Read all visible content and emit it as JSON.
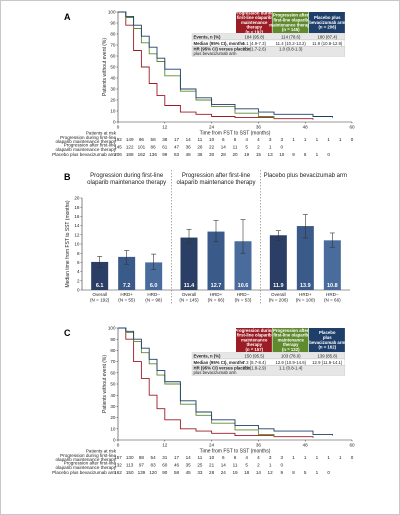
{
  "colors": {
    "c1": "#9b1c24",
    "c2": "#5f8a2e",
    "c3": "#1f3f6b",
    "gray_row": "#e6e6e6",
    "bar1": "#2b3f66",
    "bar2": "#3a5a8a",
    "bar3": "#4a6c9c"
  },
  "panels": [
    {
      "letter": "A",
      "ylabel": "Patients without event (%)",
      "xlabel": "Time from FST to SST (months)",
      "yticks": [
        "0",
        "10",
        "20",
        "30",
        "40",
        "50",
        "60",
        "70",
        "80",
        "90",
        "100"
      ],
      "xticks": [
        "0",
        "12",
        "24",
        "36",
        "48",
        "60"
      ],
      "headers": [
        [
          "Progression during",
          "first-line olaparib",
          "maintenance",
          "therapy",
          "(n = 192)"
        ],
        [
          "Progression after",
          "first-line olaparib",
          "maintenance therapy",
          "(n = 145)"
        ],
        [
          "Placebo plus",
          "bevacizumab arm",
          "(n = 206)"
        ]
      ],
      "table_rows": [
        {
          "label": "Events, n (%)",
          "vals": [
            "184 (95.8)",
            "114 (78.6)",
            "180 (87.4)"
          ]
        },
        {
          "label": "Median (95% CI), months",
          "vals": [
            "6.1 (4.9-7.3)",
            "11.4 (10.2-13.2)",
            "11.9 (10.8-12.9)"
          ]
        },
        {
          "label": "HR (95% CI) versus placebo plus bevacizumab arm",
          "vals": [
            "2.1 (1.7-2.6)",
            "1.0 (0.8-1.3)",
            ""
          ]
        }
      ],
      "risk_title": "Patients at risk",
      "risk_rows": [
        {
          "label": [
            "Progression during first-line",
            "olaparib maintenance therapy"
          ],
          "vals": [
            "192",
            "149",
            "96",
            "58",
            "38",
            "17",
            "14",
            "11",
            "10",
            "6",
            "6",
            "4",
            "4",
            "3",
            "3",
            "1",
            "1",
            "1",
            "1",
            "1",
            "0"
          ]
        },
        {
          "label": [
            "Progression after first-line",
            "olaparib maintenance therapy"
          ],
          "vals": [
            "145",
            "122",
            "101",
            "86",
            "61",
            "47",
            "36",
            "26",
            "22",
            "14",
            "11",
            "5",
            "2",
            "1",
            "0"
          ]
        },
        {
          "label": [
            "Placebo plus bevacizumab arm"
          ],
          "vals": [
            "206",
            "188",
            "162",
            "136",
            "99",
            "63",
            "48",
            "36",
            "30",
            "28",
            "20",
            "19",
            "15",
            "13",
            "10",
            "9",
            "6",
            "1",
            "0"
          ]
        }
      ]
    },
    {
      "letter": "C",
      "ylabel": "Patients without event (%)",
      "xlabel": "Time from FST to SST (months)",
      "yticks": [
        "0",
        "10",
        "20",
        "30",
        "40",
        "50",
        "60",
        "70",
        "80",
        "90",
        "100"
      ],
      "xticks": [
        "0",
        "12",
        "24",
        "36",
        "48",
        "60"
      ],
      "headers": [
        [
          "Progression during",
          "first-line olaparib",
          "maintenance",
          "therapy",
          "(n = 157)"
        ],
        [
          "Progression after",
          "first-line olaparib",
          "maintenance",
          "therapy",
          "(n = 132)"
        ],
        [
          "Placebo",
          "plus",
          "bevacizumab arm",
          "(n = 162)"
        ]
      ],
      "table_rows": [
        {
          "label": "Events, n (%)",
          "vals": [
            "150 (95.5)",
            "103 (78.0)",
            "139 (85.8)"
          ]
        },
        {
          "label": "Median (95% CI), months",
          "vals": [
            "7.3 (5.7-8.4)",
            "12.9 (10.9-14.6)",
            "12.9 (11.9-14.1)"
          ]
        },
        {
          "label": "HR (95% CI) versus placebo plus bevacizumab arm",
          "vals": [
            "2.3 (1.8-2.9)",
            "1.1 (0.8-1.4)",
            ""
          ]
        }
      ],
      "risk_title": "Patients at risk",
      "risk_rows": [
        {
          "label": [
            "Progression during first-line",
            "olaparib maintenance therapy"
          ],
          "vals": [
            "157",
            "130",
            "88",
            "54",
            "31",
            "17",
            "14",
            "11",
            "10",
            "6",
            "6",
            "4",
            "4",
            "3",
            "3",
            "1",
            "1",
            "1",
            "1",
            "1",
            "0"
          ]
        },
        {
          "label": [
            "Progression after first-line",
            "olaparib maintenance therapy"
          ],
          "vals": [
            "132",
            "113",
            "97",
            "83",
            "60",
            "46",
            "35",
            "25",
            "21",
            "14",
            "11",
            "5",
            "2",
            "1",
            "0"
          ]
        },
        {
          "label": [
            "Placebo plus bevacizumab arm"
          ],
          "vals": [
            "162",
            "150",
            "139",
            "120",
            "90",
            "58",
            "45",
            "33",
            "28",
            "24",
            "19",
            "18",
            "14",
            "12",
            "9",
            "8",
            "5",
            "1",
            "0"
          ]
        }
      ]
    }
  ],
  "panel_b": {
    "letter": "B",
    "ylabel": "Median time from FST to SST (months)",
    "yticks": [
      "0",
      "2",
      "4",
      "6",
      "8",
      "10",
      "12",
      "14",
      "16",
      "18",
      "20"
    ],
    "groups": [
      {
        "title": [
          "Progression during first-line",
          "olaparib maintenance therapy"
        ]
      },
      {
        "title": [
          "Progression after first-line",
          "olaparib maintenance therapy"
        ]
      },
      {
        "title": [
          "Placebo plus bevacizumab arm"
        ]
      }
    ]
  },
  "chart_data": [
    {
      "type": "line",
      "panel": "A",
      "xlabel": "Time from FST to SST (months)",
      "ylabel": "Patients without event (%)",
      "xlim": [
        0,
        60
      ],
      "ylim": [
        0,
        100
      ],
      "series": [
        {
          "name": "Progression during first-line olaparib maintenance therapy",
          "x": [
            0,
            2,
            4,
            6,
            8,
            10,
            12,
            16,
            20,
            24,
            30,
            40,
            50
          ],
          "y": [
            100,
            88,
            65,
            50,
            35,
            24,
            15,
            9,
            7,
            5,
            4,
            3,
            2
          ]
        },
        {
          "name": "Progression after first-line olaparib maintenance therapy",
          "x": [
            0,
            2,
            4,
            6,
            8,
            10,
            12,
            16,
            20,
            24,
            30,
            36,
            40
          ],
          "y": [
            100,
            95,
            85,
            72,
            62,
            55,
            42,
            28,
            20,
            14,
            8,
            5,
            3
          ]
        },
        {
          "name": "Placebo plus bevacizumab arm",
          "x": [
            0,
            2,
            4,
            6,
            8,
            10,
            12,
            16,
            20,
            24,
            30,
            36,
            40,
            50,
            55
          ],
          "y": [
            100,
            96,
            88,
            78,
            68,
            58,
            48,
            30,
            22,
            16,
            12,
            9,
            7,
            5,
            4
          ]
        }
      ]
    },
    {
      "type": "bar",
      "panel": "B",
      "ylabel": "Median time from FST to SST (months)",
      "ylim": [
        0,
        20
      ],
      "categories": [
        "Overall (N = 192)",
        "HRD+ (N = 55)",
        "HRD− (N = 98)",
        "Overall (N = 145)",
        "HRD+ (N = 66)",
        "HRD− (N = 53)",
        "Overall (N = 206)",
        "HRD+ (N = 100)",
        "HRD− (N = 66)"
      ],
      "values": [
        6.1,
        7.2,
        6.0,
        11.4,
        12.7,
        10.6,
        11.9,
        13.9,
        10.8
      ],
      "err_low": [
        4.9,
        5.6,
        4.5,
        10.2,
        10.5,
        8.0,
        10.8,
        11.3,
        9.3
      ],
      "err_high": [
        7.3,
        8.6,
        7.8,
        13.2,
        15.1,
        15.3,
        12.9,
        16.4,
        12.4
      ]
    },
    {
      "type": "line",
      "panel": "C",
      "xlabel": "Time from FST to SST (months)",
      "ylabel": "Patients without event (%)",
      "xlim": [
        0,
        60
      ],
      "ylim": [
        0,
        100
      ],
      "series": [
        {
          "name": "Progression during first-line olaparib maintenance therapy",
          "x": [
            0,
            2,
            4,
            6,
            8,
            10,
            12,
            16,
            20,
            24,
            30,
            40,
            50
          ],
          "y": [
            100,
            90,
            70,
            55,
            40,
            28,
            18,
            10,
            8,
            6,
            4,
            3,
            2
          ]
        },
        {
          "name": "Progression after first-line olaparib maintenance therapy",
          "x": [
            0,
            2,
            4,
            6,
            8,
            10,
            12,
            16,
            20,
            24,
            30,
            36,
            40
          ],
          "y": [
            100,
            96,
            88,
            78,
            68,
            58,
            50,
            32,
            22,
            15,
            9,
            5,
            3
          ]
        },
        {
          "name": "Placebo plus bevacizumab arm",
          "x": [
            0,
            2,
            4,
            6,
            8,
            10,
            12,
            16,
            20,
            24,
            30,
            36,
            40,
            50,
            55
          ],
          "y": [
            100,
            97,
            90,
            82,
            72,
            62,
            52,
            35,
            25,
            18,
            13,
            10,
            8,
            5,
            4
          ]
        }
      ]
    }
  ]
}
